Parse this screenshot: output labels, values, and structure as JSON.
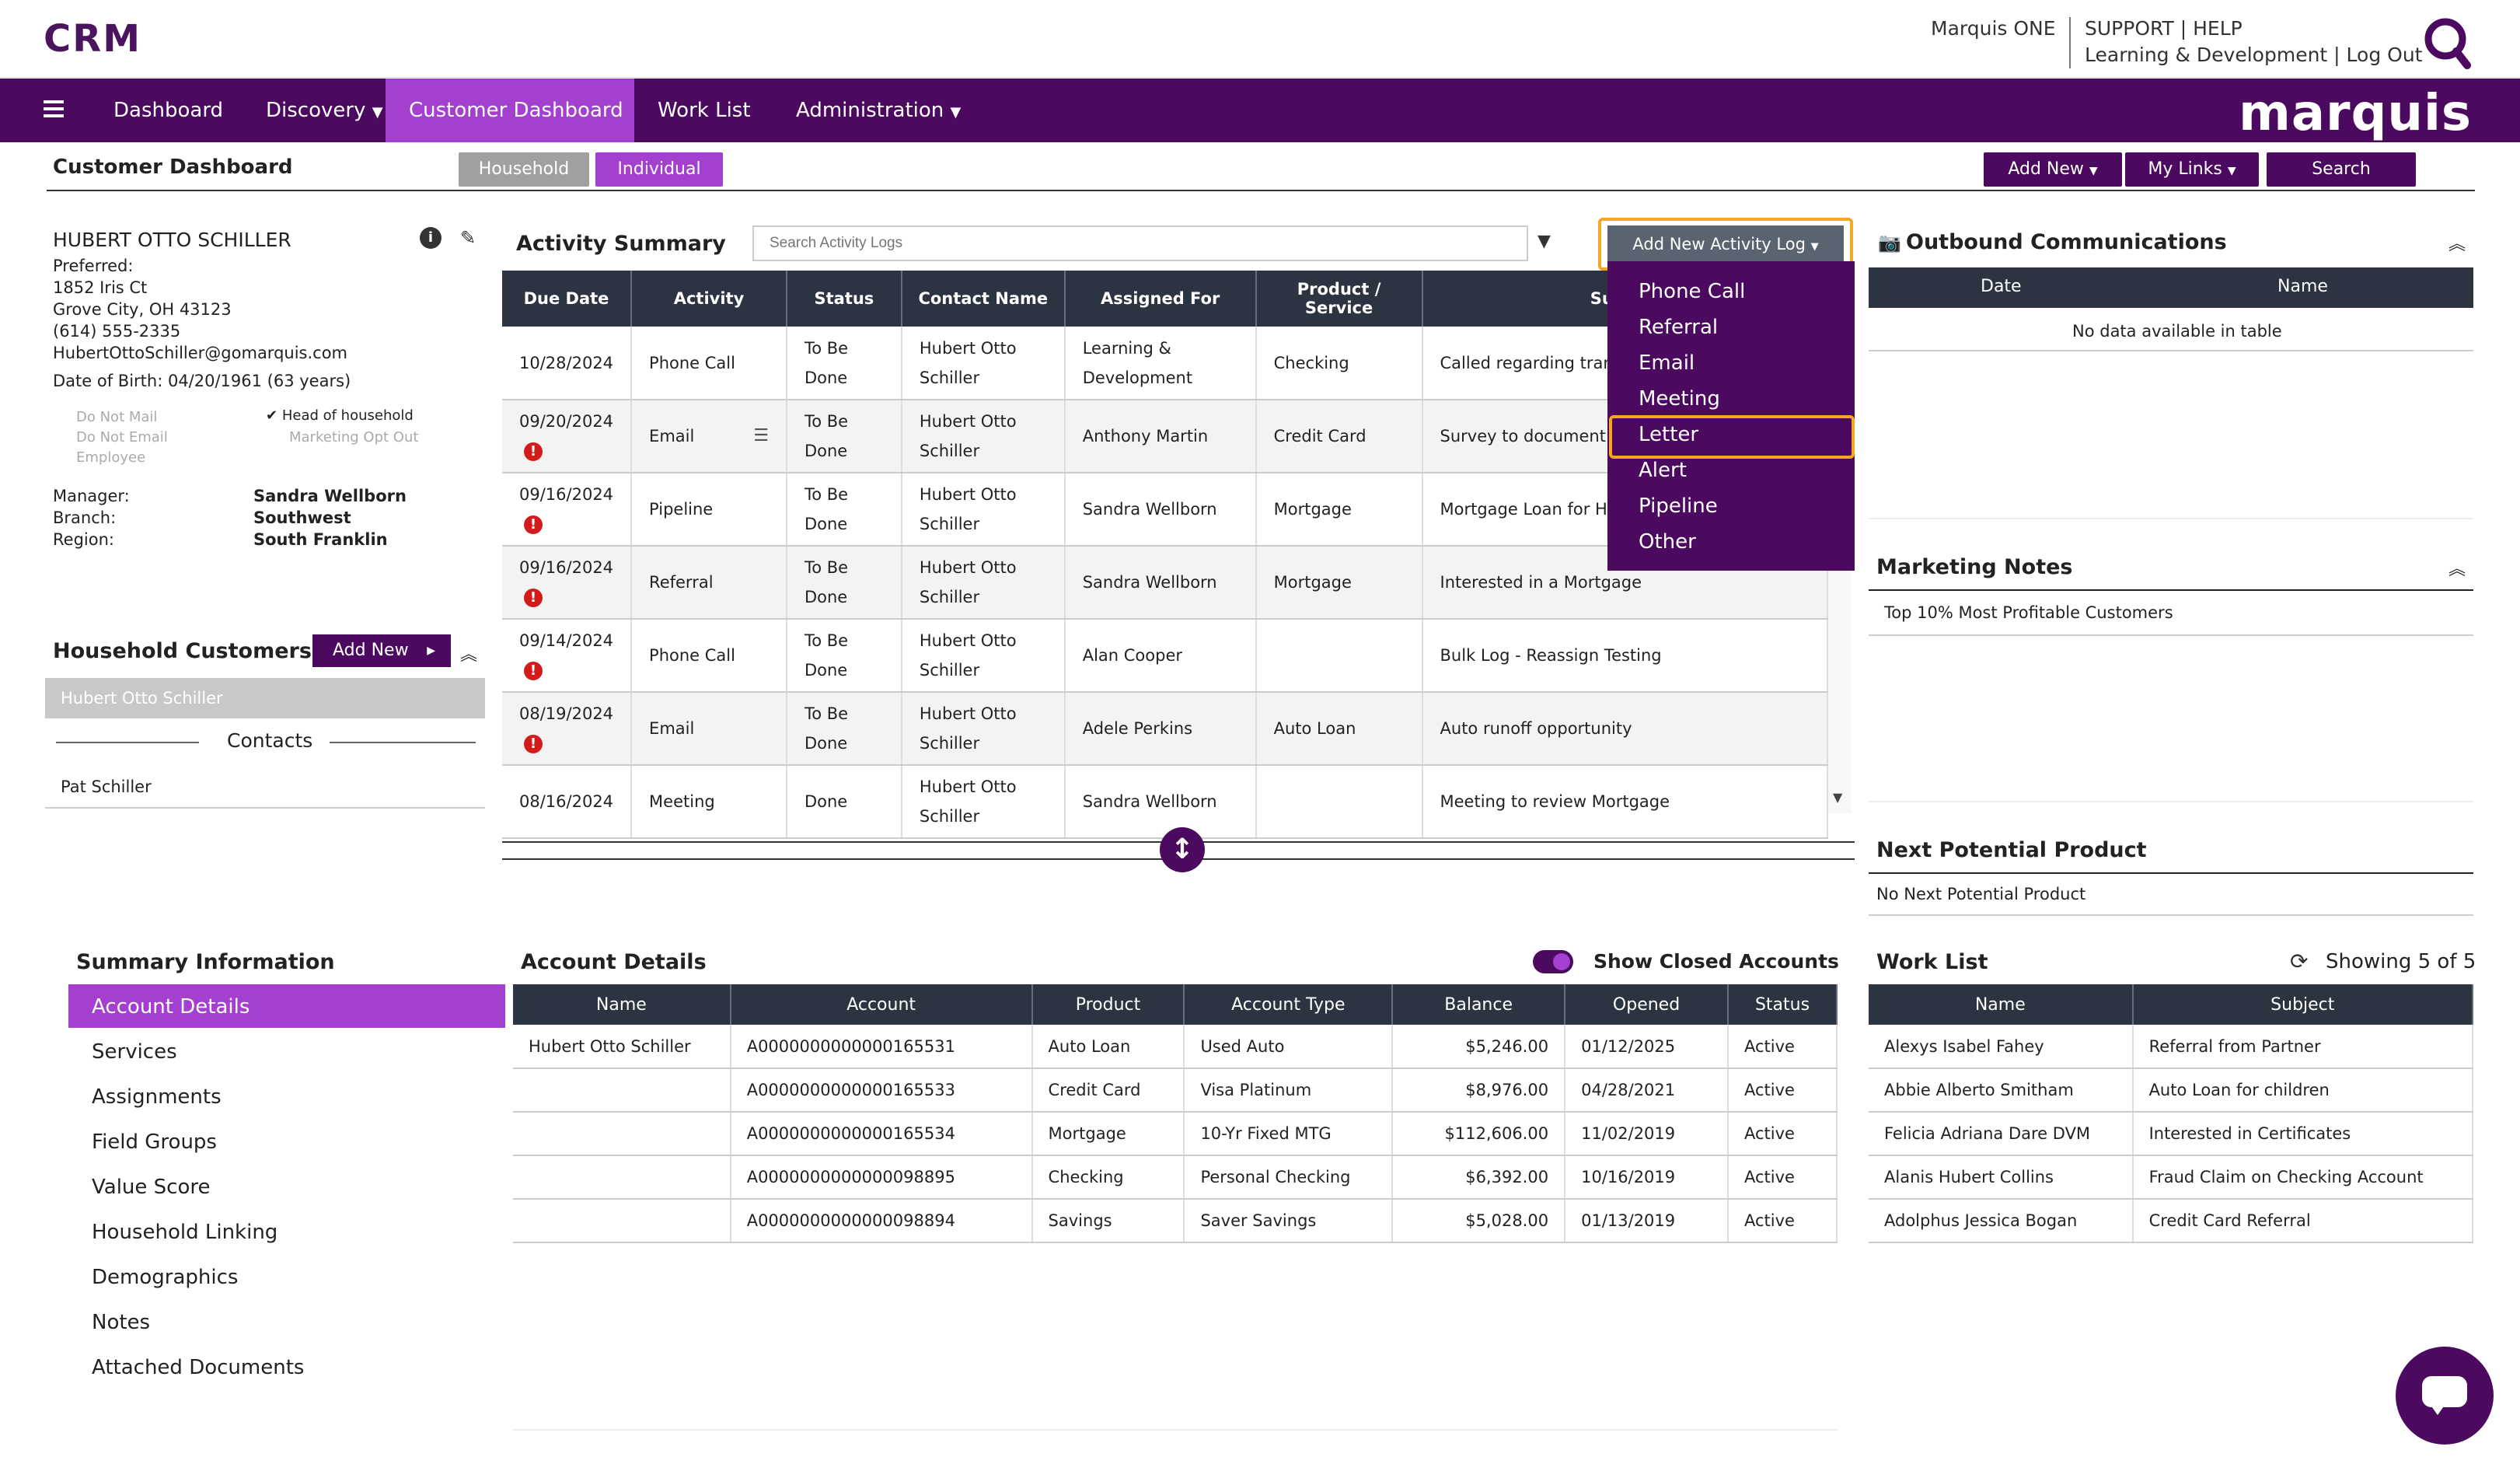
{
  "header": {
    "app_title": "CRM",
    "marquis_one": "Marquis ONE",
    "support_help": "SUPPORT | HELP",
    "learning_logout": "Learning & Development | Log Out",
    "brand": "marquis"
  },
  "nav": {
    "items": [
      {
        "label": "Dashboard"
      },
      {
        "label": "Discovery"
      },
      {
        "label": "Customer Dashboard"
      },
      {
        "label": "Work List"
      },
      {
        "label": "Administration"
      }
    ]
  },
  "page": {
    "title": "Customer Dashboard",
    "household_label": "Household",
    "individual_label": "Individual",
    "add_new_label": "Add New",
    "my_links_label": "My Links",
    "search_label": "Search"
  },
  "customer": {
    "name": "HUBERT OTTO SCHILLER",
    "preferred": "Preferred:",
    "address1": "1852 Iris Ct",
    "address2": "Grove City, OH 43123",
    "phone": "(614) 555-2335",
    "email": "HubertOttoSchiller@gomarquis.com",
    "dob": "Date of Birth: 04/20/1961 (63 years)",
    "flags": {
      "do_not_mail": "Do Not Mail",
      "do_not_email": "Do Not Email",
      "employee": "Employee",
      "head_of_household": "Head of household",
      "marketing_opt_out": "Marketing Opt Out"
    },
    "manager_label": "Manager:",
    "manager": "Sandra Wellborn",
    "branch_label": "Branch:",
    "branch": "Southwest",
    "region_label": "Region:",
    "region": "South Franklin"
  },
  "household": {
    "title": "Household Customers",
    "add_new": "Add New",
    "selected": "Hubert Otto Schiller",
    "contacts_label": "Contacts",
    "contact": "Pat Schiller"
  },
  "activity": {
    "title": "Activity Summary",
    "search_placeholder": "Search Activity Logs",
    "add_button": "Add New Activity Log",
    "columns": [
      "Due Date",
      "Activity",
      "Status",
      "Contact Name",
      "Assigned For",
      "Product / Service",
      "Subject"
    ],
    "rows": [
      {
        "date": "10/28/2024",
        "activity": "Phone Call",
        "status": "To Be Done",
        "contact": "Hubert Otto Schiller",
        "assigned": "Learning & Development",
        "product": "Checking",
        "subject": "Called regarding trans on account",
        "warn": false
      },
      {
        "date": "09/20/2024",
        "activity": "Email",
        "status": "To Be Done",
        "contact": "Hubert Otto Schiller",
        "assigned": "Anthony Martin",
        "product": "Credit Card",
        "subject": "Survey to document c fraudulent activity",
        "warn": true
      },
      {
        "date": "09/16/2024",
        "activity": "Pipeline",
        "status": "To Be Done",
        "contact": "Hubert Otto Schiller",
        "assigned": "Sandra Wellborn",
        "product": "Mortgage",
        "subject": "Mortgage Loan for Hu",
        "warn": true
      },
      {
        "date": "09/16/2024",
        "activity": "Referral",
        "status": "To Be Done",
        "contact": "Hubert Otto Schiller",
        "assigned": "Sandra Wellborn",
        "product": "Mortgage",
        "subject": "Interested in a Mortgage",
        "warn": true
      },
      {
        "date": "09/14/2024",
        "activity": "Phone Call",
        "status": "To Be Done",
        "contact": "Hubert Otto Schiller",
        "assigned": "Alan Cooper",
        "product": "",
        "subject": "Bulk Log - Reassign Testing",
        "warn": true
      },
      {
        "date": "08/19/2024",
        "activity": "Email",
        "status": "To Be Done",
        "contact": "Hubert Otto Schiller",
        "assigned": "Adele Perkins",
        "product": "Auto Loan",
        "subject": "Auto runoff opportunity",
        "warn": true
      },
      {
        "date": "08/16/2024",
        "activity": "Meeting",
        "status": "Done",
        "contact": "Hubert Otto Schiller",
        "assigned": "Sandra Wellborn",
        "product": "",
        "subject": "Meeting to review Mortgage",
        "warn": false
      }
    ]
  },
  "dropdown": {
    "items": [
      "Phone Call",
      "Referral",
      "Email",
      "Meeting",
      "Letter",
      "Alert",
      "Pipeline",
      "Other"
    ],
    "highlighted": "Letter"
  },
  "outbound": {
    "title": "Outbound Communications",
    "columns": [
      "Date",
      "Name"
    ],
    "empty": "No data available in table"
  },
  "marketing": {
    "title": "Marketing Notes",
    "note": "Top 10% Most Profitable Customers"
  },
  "next_product": {
    "title": "Next Potential Product",
    "value": "No Next Potential Product"
  },
  "summary": {
    "title": "Summary Information",
    "items": [
      "Account Details",
      "Services",
      "Assignments",
      "Field Groups",
      "Value Score",
      "Household Linking",
      "Demographics",
      "Notes",
      "Attached Documents"
    ]
  },
  "accounts": {
    "title": "Account Details",
    "show_closed": "Show Closed Accounts",
    "columns": [
      "Name",
      "Account",
      "Product",
      "Account Type",
      "Balance",
      "Opened",
      "Status"
    ],
    "rows": [
      {
        "name": "Hubert Otto Schiller",
        "account": "A0000000000000165531",
        "product": "Auto Loan",
        "type": "Used Auto",
        "balance": "$5,246.00",
        "opened": "01/12/2025",
        "status": "Active"
      },
      {
        "name": "",
        "account": "A0000000000000165533",
        "product": "Credit Card",
        "type": "Visa Platinum",
        "balance": "$8,976.00",
        "opened": "04/28/2021",
        "status": "Active"
      },
      {
        "name": "",
        "account": "A0000000000000165534",
        "product": "Mortgage",
        "type": "10-Yr Fixed MTG",
        "balance": "$112,606.00",
        "opened": "11/02/2019",
        "status": "Active"
      },
      {
        "name": "",
        "account": "A0000000000000098895",
        "product": "Checking",
        "type": "Personal Checking",
        "balance": "$6,392.00",
        "opened": "10/16/2019",
        "status": "Active"
      },
      {
        "name": "",
        "account": "A0000000000000098894",
        "product": "Savings",
        "type": "Saver Savings",
        "balance": "$5,028.00",
        "opened": "01/13/2019",
        "status": "Active"
      }
    ]
  },
  "worklist": {
    "title": "Work List",
    "showing": "Showing 5 of 5",
    "columns": [
      "Name",
      "Subject"
    ],
    "rows": [
      {
        "name": "Alexys Isabel Fahey",
        "subject": "Referral from Partner"
      },
      {
        "name": "Abbie Alberto Smitham",
        "subject": "Auto Loan for children"
      },
      {
        "name": "Felicia Adriana Dare DVM",
        "subject": "Interested in Certificates"
      },
      {
        "name": "Alanis Hubert Collins",
        "subject": "Fraud Claim on Checking Account"
      },
      {
        "name": "Adolphus Jessica Bogan",
        "subject": "Credit Card Referral"
      }
    ]
  },
  "colors": {
    "nav_bg": "#4b0a5f",
    "nav_active": "#a43fd0",
    "header_dark": "#2b3440",
    "highlight": "#f5a623",
    "warning": "#d41b1b"
  }
}
